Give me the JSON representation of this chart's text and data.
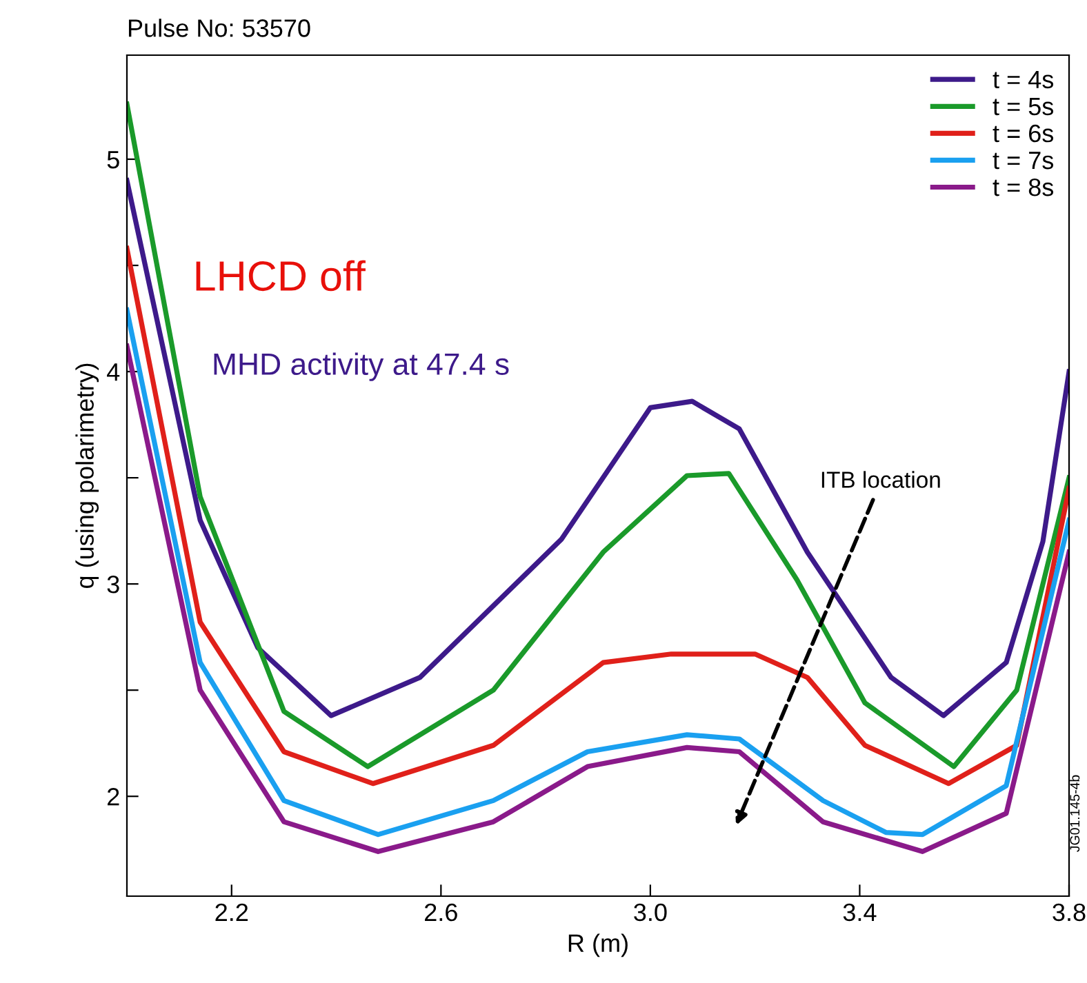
{
  "chart_data": {
    "type": "line",
    "title": "Pulse No: 53570",
    "xlabel": "R (m)",
    "ylabel": "q (using polarimetry)",
    "xlim": [
      2.0,
      3.8
    ],
    "ylim": [
      1.53,
      5.49
    ],
    "xticks": [
      2.2,
      2.6,
      {
        "value": 3,
        "label": "3.0"
      },
      3.4,
      3.8
    ],
    "yticks": [
      2,
      {
        "value": 2.5,
        "label": null
      },
      3,
      {
        "value": 3.5,
        "label": null
      },
      4,
      {
        "value": 4.5,
        "label": null
      },
      5
    ],
    "grid": false,
    "legend": "top right",
    "marker": "none",
    "line_style": "solid",
    "annotations": [
      "LHCD off",
      "MHD activity at 47.4 s",
      "ITB location",
      "JG01.145-4b"
    ],
    "series": [
      {
        "name": "t = 4s",
        "color": "#3d1a8a",
        "x": [
          2.0,
          2.14,
          2.25,
          2.39,
          2.56,
          2.83,
          3.0,
          3.08,
          3.17,
          3.3,
          3.46,
          3.56,
          3.68,
          3.75,
          3.8
        ],
        "values": [
          4.9,
          3.3,
          2.7,
          2.38,
          2.56,
          3.21,
          3.83,
          3.86,
          3.73,
          3.15,
          2.56,
          2.38,
          2.63,
          3.2,
          4.0
        ]
      },
      {
        "name": "t = 5s",
        "color": "#1a9a2a",
        "x": [
          2.0,
          2.14,
          2.3,
          2.46,
          2.7,
          2.91,
          3.07,
          3.15,
          3.28,
          3.41,
          3.58,
          3.7,
          3.8
        ],
        "values": [
          5.26,
          3.41,
          2.4,
          2.14,
          2.5,
          3.15,
          3.51,
          3.52,
          3.02,
          2.44,
          2.14,
          2.5,
          3.5
        ]
      },
      {
        "name": "t = 6s",
        "color": "#e0201a",
        "x": [
          2.0,
          2.14,
          2.3,
          2.47,
          2.7,
          2.91,
          3.04,
          3.2,
          3.3,
          3.41,
          3.57,
          3.7,
          3.8
        ],
        "values": [
          4.58,
          2.82,
          2.21,
          2.06,
          2.24,
          2.63,
          2.67,
          2.67,
          2.56,
          2.24,
          2.06,
          2.24,
          3.45
        ]
      },
      {
        "name": "t = 7s",
        "color": "#1aa0f0",
        "x": [
          2.0,
          2.14,
          2.3,
          2.48,
          2.7,
          2.88,
          3.07,
          3.17,
          3.33,
          3.45,
          3.52,
          3.68,
          3.8
        ],
        "values": [
          4.29,
          2.63,
          1.98,
          1.82,
          1.98,
          2.21,
          2.29,
          2.27,
          1.98,
          1.83,
          1.82,
          2.05,
          3.3
        ]
      },
      {
        "name": "t = 8s",
        "color": "#8a1a8a",
        "x": [
          2.0,
          2.14,
          2.3,
          2.48,
          2.7,
          2.88,
          3.07,
          3.17,
          3.33,
          3.52,
          3.68,
          3.8
        ],
        "values": [
          4.12,
          2.5,
          1.88,
          1.74,
          1.88,
          2.14,
          2.23,
          2.21,
          1.88,
          1.74,
          1.92,
          3.15
        ]
      }
    ]
  }
}
